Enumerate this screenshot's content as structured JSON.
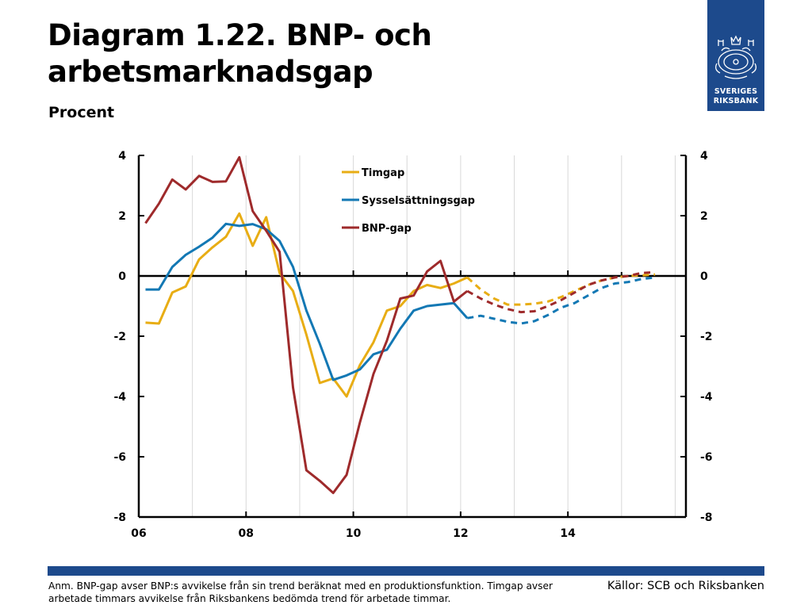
{
  "header": {
    "title": "Diagram 1.22. BNP- och arbetsmarknadsgap",
    "subtitle": "Procent"
  },
  "logo": {
    "line1": "SVERIGES",
    "line2": "RIKSBANK",
    "icon": "riksbank-crest-icon"
  },
  "footer": {
    "note": "Anm. BNP-gap avser BNP:s avvikelse från sin trend beräknat med en produktionsfunktion. Timgap avser arbetade timmars avvikelse från Riksbankens bedömda trend för arbetade timmar.",
    "source": "Källor: SCB och Riksbanken"
  },
  "colors": {
    "bar": "#1d4a8c",
    "timgap": "#e8ad14",
    "syss": "#1378b4",
    "bnp": "#9e2a2b"
  },
  "chart_data": {
    "type": "line",
    "ylim": [
      -8,
      4
    ],
    "yticks": [
      "4",
      "2",
      "0",
      "-2",
      "-4",
      "-6",
      "-8"
    ],
    "xlim": [
      2006,
      2016.2
    ],
    "xticks": [
      {
        "label": "06",
        "value": 2006
      },
      {
        "label": "08",
        "value": 2008
      },
      {
        "label": "10",
        "value": 2010
      },
      {
        "label": "12",
        "value": 2012
      },
      {
        "label": "14",
        "value": 2014
      }
    ],
    "legend_position": "top-center",
    "series": [
      {
        "name": "Timgap",
        "color": "#e8ad14",
        "x": [
          2006.125,
          2006.375,
          2006.625,
          2006.875,
          2007.125,
          2007.375,
          2007.625,
          2007.875,
          2008.125,
          2008.375,
          2008.625,
          2008.875,
          2009.125,
          2009.375,
          2009.625,
          2009.875,
          2010.125,
          2010.375,
          2010.625,
          2010.875,
          2011.125,
          2011.375,
          2011.625,
          2011.875,
          2012.125
        ],
        "y": [
          -1.55,
          -1.58,
          -0.55,
          -0.35,
          0.55,
          0.95,
          1.3,
          2.07,
          1.0,
          1.95,
          0.1,
          -0.5,
          -1.95,
          -3.55,
          -3.4,
          -4.0,
          -2.95,
          -2.2,
          -1.15,
          -1.0,
          -0.5,
          -0.3,
          -0.4,
          -0.25,
          -0.05
        ]
      },
      {
        "name": "Sysselsättningsgap",
        "color": "#1378b4",
        "x": [
          2006.125,
          2006.375,
          2006.625,
          2006.875,
          2007.125,
          2007.375,
          2007.625,
          2007.875,
          2008.125,
          2008.375,
          2008.625,
          2008.875,
          2009.125,
          2009.375,
          2009.625,
          2009.875,
          2010.125,
          2010.375,
          2010.625,
          2010.875,
          2011.125,
          2011.375,
          2011.625,
          2011.875,
          2012.125
        ],
        "y": [
          -0.45,
          -0.45,
          0.3,
          0.7,
          0.97,
          1.27,
          1.73,
          1.66,
          1.72,
          1.55,
          1.16,
          0.3,
          -1.15,
          -2.25,
          -3.45,
          -3.3,
          -3.1,
          -2.6,
          -2.45,
          -1.75,
          -1.15,
          -1.0,
          -0.95,
          -0.9,
          -1.4
        ]
      },
      {
        "name": "BNP-gap",
        "color": "#9e2a2b",
        "x": [
          2006.125,
          2006.375,
          2006.625,
          2006.875,
          2007.125,
          2007.375,
          2007.625,
          2007.875,
          2008.125,
          2008.375,
          2008.625,
          2008.875,
          2009.125,
          2009.375,
          2009.625,
          2009.875,
          2010.125,
          2010.375,
          2010.625,
          2010.875,
          2011.125,
          2011.375,
          2011.625,
          2011.875,
          2012.125
        ],
        "y": [
          1.75,
          2.4,
          3.2,
          2.87,
          3.32,
          3.12,
          3.14,
          3.94,
          2.15,
          1.5,
          0.8,
          -3.7,
          -6.45,
          -6.8,
          -7.2,
          -6.6,
          -4.85,
          -3.25,
          -2.15,
          -0.75,
          -0.65,
          0.15,
          0.5,
          -0.85,
          -0.5
        ]
      },
      {
        "name": "Timgap",
        "color": "#e8ad14",
        "dashed": true,
        "x": [
          2012.125,
          2012.375,
          2012.625,
          2012.875,
          2013.125,
          2013.375,
          2013.625,
          2013.875,
          2014.125,
          2014.375,
          2014.625,
          2014.875,
          2015.125,
          2015.375,
          2015.625
        ],
        "y": [
          -0.05,
          -0.45,
          -0.75,
          -0.95,
          -0.95,
          -0.92,
          -0.85,
          -0.7,
          -0.5,
          -0.3,
          -0.15,
          -0.05,
          0.0,
          0.02,
          0.05
        ]
      },
      {
        "name": "Sysselsättningsgap",
        "color": "#1378b4",
        "dashed": true,
        "x": [
          2012.125,
          2012.375,
          2012.625,
          2012.875,
          2013.125,
          2013.375,
          2013.625,
          2013.875,
          2014.125,
          2014.375,
          2014.625,
          2014.875,
          2015.125,
          2015.375,
          2015.625
        ],
        "y": [
          -1.4,
          -1.32,
          -1.42,
          -1.52,
          -1.58,
          -1.5,
          -1.3,
          -1.05,
          -0.9,
          -0.65,
          -0.4,
          -0.25,
          -0.2,
          -0.1,
          -0.05
        ]
      },
      {
        "name": "BNP-gap",
        "color": "#9e2a2b",
        "dashed": true,
        "x": [
          2012.125,
          2012.375,
          2012.625,
          2012.875,
          2013.125,
          2013.375,
          2013.625,
          2013.875,
          2014.125,
          2014.375,
          2014.625,
          2014.875,
          2015.125,
          2015.375,
          2015.625
        ],
        "y": [
          -0.5,
          -0.75,
          -0.95,
          -1.1,
          -1.2,
          -1.17,
          -1.0,
          -0.8,
          -0.55,
          -0.3,
          -0.15,
          -0.05,
          0.0,
          0.1,
          0.12
        ]
      }
    ]
  }
}
